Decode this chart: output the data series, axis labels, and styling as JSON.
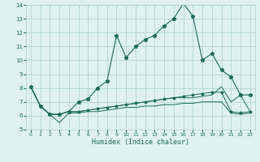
{
  "xlabel": "Humidex (Indice chaleur)",
  "xlim": [
    -0.5,
    23.5
  ],
  "ylim": [
    5,
    14
  ],
  "yticks": [
    5,
    6,
    7,
    8,
    9,
    10,
    11,
    12,
    13,
    14
  ],
  "xticks": [
    0,
    1,
    2,
    3,
    4,
    5,
    6,
    7,
    8,
    9,
    10,
    11,
    12,
    13,
    14,
    15,
    16,
    17,
    18,
    19,
    20,
    21,
    22,
    23
  ],
  "background_color": "#dff2f0",
  "grid_color": "#aacfcf",
  "line_color": "#1a6b5a",
  "line1_x": [
    0,
    1,
    2,
    3,
    4,
    5,
    6,
    7,
    8,
    9,
    10,
    11,
    12,
    13,
    14,
    15,
    16,
    17,
    18,
    19,
    20,
    21,
    22,
    23
  ],
  "line1_y": [
    8.1,
    6.7,
    6.1,
    6.1,
    6.3,
    7.0,
    7.2,
    8.0,
    8.5,
    11.8,
    10.2,
    11.0,
    11.5,
    11.8,
    12.5,
    13.0,
    14.1,
    13.2,
    10.0,
    10.5,
    9.3,
    8.8,
    7.5,
    7.5
  ],
  "line2_x": [
    0,
    1,
    2,
    3,
    4,
    5,
    6,
    7,
    8,
    9,
    10,
    11,
    12,
    13,
    14,
    15,
    16,
    17,
    18,
    19,
    20,
    21,
    22,
    23
  ],
  "line2_y": [
    8.1,
    6.7,
    6.1,
    5.5,
    6.2,
    6.2,
    6.3,
    6.3,
    6.4,
    6.5,
    6.6,
    6.6,
    6.7,
    6.7,
    6.8,
    6.8,
    6.9,
    6.9,
    7.0,
    7.0,
    7.0,
    6.2,
    6.1,
    6.2
  ],
  "line3_x": [
    0,
    1,
    2,
    3,
    4,
    5,
    6,
    7,
    8,
    9,
    10,
    11,
    12,
    13,
    14,
    15,
    16,
    17,
    18,
    19,
    20,
    21,
    22,
    23
  ],
  "line3_y": [
    8.1,
    6.7,
    6.1,
    6.1,
    6.3,
    6.3,
    6.4,
    6.5,
    6.6,
    6.7,
    6.8,
    6.9,
    7.0,
    7.1,
    7.2,
    7.3,
    7.3,
    7.3,
    7.4,
    7.5,
    8.1,
    7.0,
    7.5,
    6.3
  ],
  "line4_x": [
    0,
    1,
    2,
    3,
    4,
    5,
    6,
    7,
    8,
    9,
    10,
    11,
    12,
    13,
    14,
    15,
    16,
    17,
    18,
    19,
    20,
    21,
    22,
    23
  ],
  "line4_y": [
    8.1,
    6.7,
    6.1,
    6.1,
    6.3,
    6.3,
    6.4,
    6.5,
    6.6,
    6.7,
    6.8,
    6.9,
    7.0,
    7.1,
    7.2,
    7.3,
    7.4,
    7.5,
    7.6,
    7.7,
    7.7,
    6.3,
    6.2,
    6.3
  ]
}
